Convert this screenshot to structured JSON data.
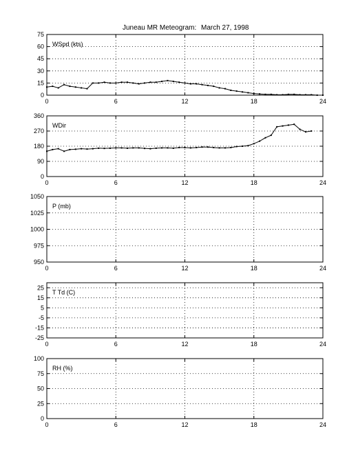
{
  "title": "Juneau MR Meteogram:",
  "date": "March 27, 1998",
  "chart_data": [
    {
      "type": "scatter",
      "label": "WSpd (kts)",
      "xlim": [
        0,
        24
      ],
      "xticks": [
        0,
        6,
        12,
        18,
        24
      ],
      "ylim": [
        0,
        75
      ],
      "yticks": [
        0,
        15,
        30,
        45,
        60,
        75
      ],
      "grid": true,
      "x": [
        0,
        0.5,
        1,
        1.5,
        2,
        2.5,
        3,
        3.5,
        4,
        4.5,
        5,
        5.5,
        6,
        6.5,
        7,
        7.5,
        8,
        8.5,
        9,
        9.5,
        10,
        10.5,
        11,
        11.5,
        12,
        12.5,
        13,
        13.5,
        14,
        14.5,
        15,
        15.5,
        16,
        16.5,
        17,
        17.5,
        18,
        18.5,
        19,
        19.5,
        20,
        20.5,
        21,
        21.5,
        22,
        22.5,
        23,
        23.5,
        24
      ],
      "y": [
        10,
        11,
        9,
        13,
        11,
        10,
        9,
        8,
        15,
        15,
        16,
        15,
        15,
        16,
        16,
        15,
        14,
        15,
        16,
        16,
        17,
        18,
        17,
        16,
        15,
        14,
        14,
        13,
        12,
        11,
        9,
        8,
        6,
        5,
        4,
        3,
        2,
        1.5,
        1,
        1,
        0.5,
        0.5,
        1,
        1,
        0.5,
        0.5,
        0.5,
        0,
        0
      ]
    },
    {
      "type": "scatter",
      "label": "WDir",
      "xlim": [
        0,
        24
      ],
      "xticks": [
        0,
        6,
        12,
        18,
        24
      ],
      "ylim": [
        0,
        360
      ],
      "yticks": [
        0,
        90,
        180,
        270,
        360
      ],
      "grid": true,
      "x": [
        0,
        0.5,
        1,
        1.5,
        2,
        2.5,
        3,
        3.5,
        4,
        4.5,
        5,
        5.5,
        6,
        6.5,
        7,
        7.5,
        8,
        8.5,
        9,
        9.5,
        10,
        10.5,
        11,
        11.5,
        12,
        12.5,
        13,
        13.5,
        14,
        14.5,
        15,
        15.5,
        16,
        16.5,
        17,
        17.5,
        18,
        18.5,
        19,
        19.5,
        20,
        20.5,
        21,
        21.5,
        22,
        22.5,
        23
      ],
      "y": [
        150,
        160,
        165,
        150,
        160,
        162,
        165,
        163,
        165,
        168,
        167,
        168,
        170,
        170,
        168,
        170,
        170,
        167,
        165,
        168,
        170,
        170,
        168,
        172,
        172,
        170,
        172,
        175,
        175,
        172,
        170,
        170,
        172,
        178,
        180,
        183,
        195,
        210,
        230,
        245,
        295,
        300,
        305,
        310,
        280,
        265,
        270
      ]
    },
    {
      "type": "line",
      "label": "P (mb)",
      "xlim": [
        0,
        24
      ],
      "xticks": [
        0,
        6,
        12,
        18,
        24
      ],
      "ylim": [
        950,
        1050
      ],
      "yticks": [
        950,
        975,
        1000,
        1025,
        1050
      ],
      "grid": true,
      "x": [],
      "y": []
    },
    {
      "type": "line",
      "label": "T Td (C)",
      "xlim": [
        0,
        24
      ],
      "xticks": [
        0,
        6,
        12,
        18,
        24
      ],
      "ylim": [
        -25,
        30
      ],
      "yticks": [
        -25,
        -15,
        -5,
        5,
        15,
        25
      ],
      "grid": true,
      "x": [],
      "y": []
    },
    {
      "type": "line",
      "label": "RH (%)",
      "xlim": [
        0,
        24
      ],
      "xticks": [
        0,
        6,
        12,
        18,
        24
      ],
      "ylim": [
        0,
        100
      ],
      "yticks": [
        0,
        25,
        50,
        75,
        100
      ],
      "grid": true,
      "x": [],
      "y": []
    }
  ]
}
